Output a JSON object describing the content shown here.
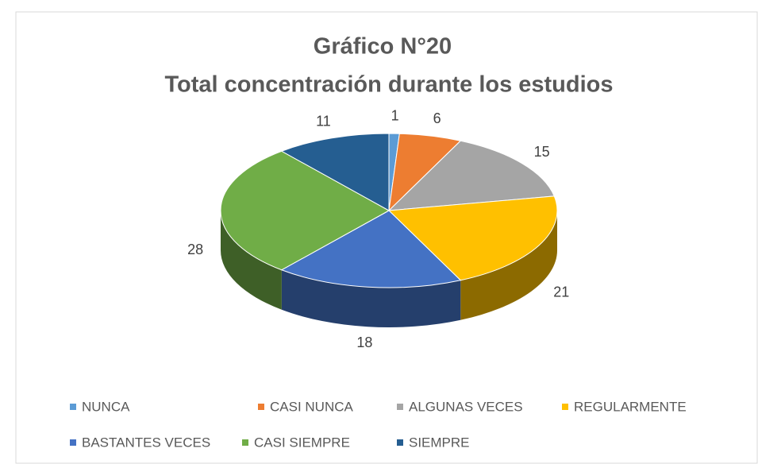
{
  "chart_data": {
    "type": "pie3d",
    "title": "Gráfico N°20",
    "subtitle": "Total concentración durante los estudios",
    "categories": [
      "NUNCA",
      "CASI NUNCA",
      "ALGUNAS VECES",
      "REGULARMENTE",
      "BASTANTES VECES",
      "CASI SIEMPRE",
      "SIEMPRE"
    ],
    "values": [
      1,
      6,
      15,
      21,
      18,
      28,
      11
    ],
    "colors": [
      "#5b9bd5",
      "#ed7d31",
      "#a5a5a5",
      "#ffc000",
      "#4472c4",
      "#70ad47",
      "#255e91"
    ],
    "legend": "bottom"
  }
}
